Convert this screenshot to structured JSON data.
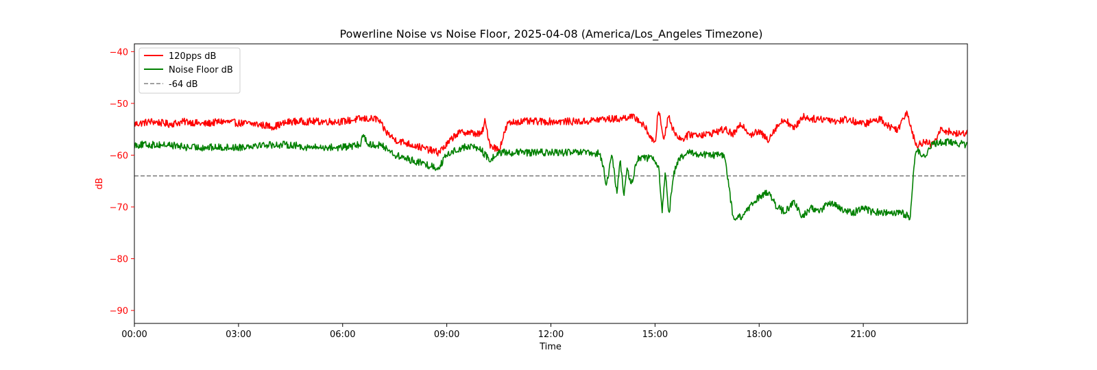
{
  "chart_data": {
    "type": "line",
    "title": "Powerline Noise vs Noise Floor, 2025-04-08 (America/Los_Angeles Timezone)",
    "xlabel": "Time",
    "ylabel": "dB",
    "x_unit": "hours",
    "xlim": [
      0,
      24
    ],
    "ylim": [
      -92.5,
      -38.5
    ],
    "x_ticks": [
      {
        "value": 0,
        "label": "00:00"
      },
      {
        "value": 3,
        "label": "03:00"
      },
      {
        "value": 6,
        "label": "06:00"
      },
      {
        "value": 9,
        "label": "09:00"
      },
      {
        "value": 12,
        "label": "12:00"
      },
      {
        "value": 15,
        "label": "15:00"
      },
      {
        "value": 18,
        "label": "18:00"
      },
      {
        "value": 21,
        "label": "21:00"
      }
    ],
    "y_ticks": [
      {
        "value": -40,
        "label": "−40"
      },
      {
        "value": -50,
        "label": "−50"
      },
      {
        "value": -60,
        "label": "−60"
      },
      {
        "value": -70,
        "label": "−70"
      },
      {
        "value": -80,
        "label": "−80"
      },
      {
        "value": -90,
        "label": "−90"
      }
    ],
    "ytick_color": "#ff0000",
    "ylabel_color": "#ff0000",
    "grid": false,
    "legend_position": "upper-left",
    "series": [
      {
        "name": "120pps dB",
        "color": "#ff0000",
        "style": "solid",
        "x": [
          0,
          0.5,
          1,
          1.5,
          2,
          2.5,
          3,
          3.5,
          4,
          4.25,
          4.5,
          5,
          5.5,
          6,
          6.5,
          7,
          7.25,
          7.5,
          8,
          8.5,
          8.75,
          9,
          9.25,
          9.5,
          10,
          10.1,
          10.25,
          10.5,
          10.75,
          11,
          11.5,
          12,
          12.5,
          13,
          13.5,
          14,
          14.25,
          14.5,
          14.75,
          15,
          15.1,
          15.25,
          15.4,
          15.5,
          15.75,
          16,
          16.5,
          17,
          17.25,
          17.5,
          17.75,
          18,
          18.25,
          18.5,
          18.75,
          19,
          19.25,
          19.5,
          20,
          20.25,
          20.5,
          20.75,
          21,
          21.25,
          21.5,
          21.75,
          22,
          22.25,
          22.4,
          22.5,
          22.75,
          23,
          23.25,
          23.5,
          23.75,
          24
        ],
        "y": [
          -54,
          -53.5,
          -54,
          -53.5,
          -54,
          -53.5,
          -53.8,
          -54,
          -54.5,
          -54,
          -53.5,
          -53.5,
          -53.5,
          -53.5,
          -53,
          -53,
          -55.5,
          -57,
          -58,
          -59,
          -59.5,
          -58,
          -56,
          -55.5,
          -56,
          -53.5,
          -58,
          -59,
          -54,
          -53.5,
          -53.5,
          -53.5,
          -53.5,
          -53.5,
          -53,
          -53,
          -52.5,
          -53,
          -55,
          -58,
          -51,
          -57,
          -52,
          -55,
          -57,
          -56,
          -56,
          -55,
          -56,
          -54,
          -56,
          -55.5,
          -57,
          -54.5,
          -53,
          -55,
          -52.5,
          -53,
          -53,
          -53.5,
          -53,
          -53.5,
          -54,
          -53.5,
          -53,
          -54.5,
          -55,
          -51.5,
          -55,
          -58,
          -57.5,
          -58,
          -55,
          -55.5,
          -56,
          -55.5
        ]
      },
      {
        "name": "Noise Floor dB",
        "color": "#008000",
        "style": "solid",
        "x": [
          0,
          0.5,
          1,
          1.5,
          2,
          2.5,
          3,
          3.5,
          4,
          4.5,
          5,
          5.5,
          6,
          6.25,
          6.5,
          6.6,
          6.75,
          7,
          7.25,
          7.5,
          8,
          8.5,
          8.75,
          9,
          9.25,
          9.5,
          9.75,
          10,
          10.1,
          10.25,
          10.5,
          10.75,
          11,
          11.5,
          12,
          12.5,
          13,
          13.25,
          13.4,
          13.5,
          13.6,
          13.75,
          13.9,
          14,
          14.1,
          14.2,
          14.3,
          14.5,
          14.75,
          15,
          15.1,
          15.2,
          15.3,
          15.4,
          15.5,
          15.6,
          15.75,
          16,
          16.5,
          17,
          17.25,
          17.5,
          17.6,
          17.75,
          18,
          18.25,
          18.5,
          18.75,
          19,
          19.25,
          19.5,
          19.75,
          20,
          20.25,
          20.5,
          20.75,
          21,
          21.25,
          21.5,
          21.75,
          22,
          22.25,
          22.35,
          22.5,
          22.75,
          23,
          23.25,
          23.5,
          24
        ],
        "y": [
          -58,
          -58,
          -58,
          -58.5,
          -58.5,
          -58.5,
          -58.5,
          -58,
          -58,
          -58,
          -58.5,
          -58.5,
          -58.5,
          -58.3,
          -58,
          -56,
          -58,
          -58,
          -58.5,
          -60,
          -61,
          -62,
          -62.5,
          -60,
          -59,
          -58.5,
          -58.3,
          -59,
          -60,
          -61,
          -59.5,
          -59.5,
          -59.5,
          -59.5,
          -59.5,
          -59.5,
          -59.5,
          -60,
          -59.5,
          -62,
          -66,
          -60,
          -67,
          -61,
          -68,
          -62,
          -66,
          -60.5,
          -60.5,
          -61,
          -62,
          -71,
          -63,
          -72,
          -65,
          -62,
          -60.5,
          -59.5,
          -60,
          -60,
          -72,
          -72,
          -71,
          -70,
          -68,
          -67,
          -70,
          -71,
          -69,
          -72,
          -70,
          -71,
          -69,
          -70,
          -71,
          -71,
          -70,
          -71,
          -71,
          -71,
          -71,
          -71.5,
          -72.5,
          -59,
          -60,
          -58,
          -57.5,
          -57.5,
          -58
        ]
      }
    ],
    "reference_line": {
      "name": "-64 dB",
      "value": -64,
      "color": "#808080",
      "style": "dashed"
    }
  }
}
